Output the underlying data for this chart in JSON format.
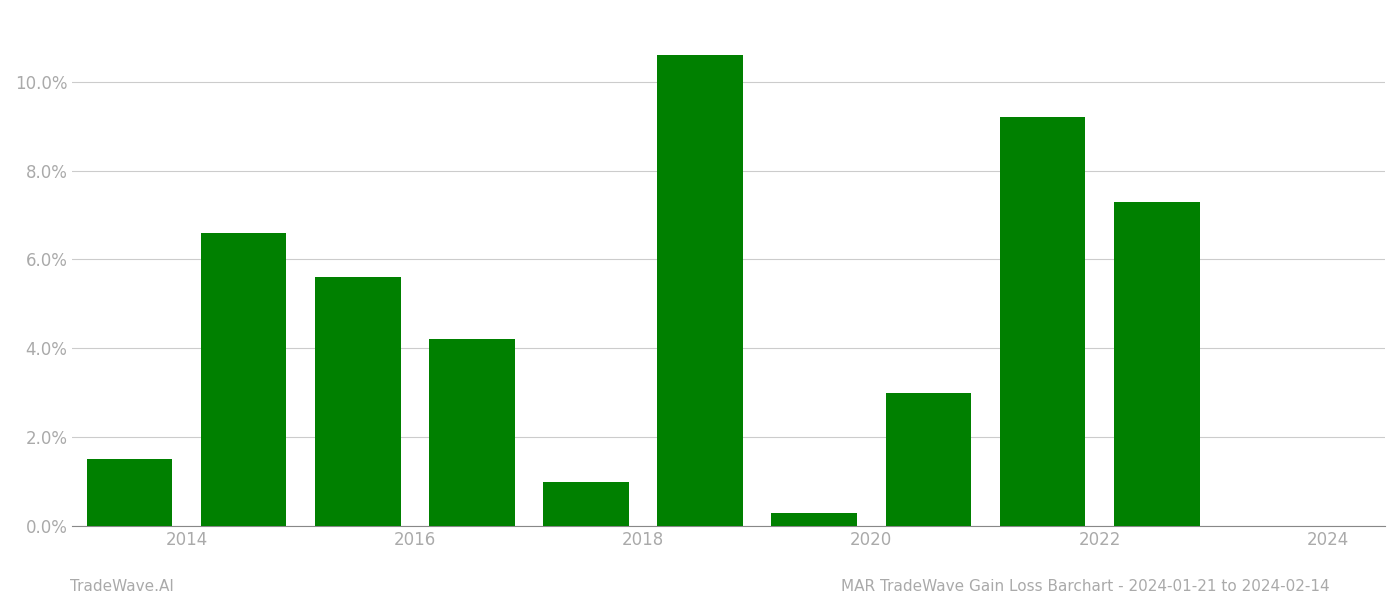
{
  "years": [
    2013.5,
    2014.5,
    2015.5,
    2016.5,
    2017.5,
    2018.5,
    2019.5,
    2020.5,
    2021.5,
    2022.5
  ],
  "values": [
    0.015,
    0.066,
    0.056,
    0.042,
    0.01,
    0.106,
    0.003,
    0.03,
    0.092,
    0.073
  ],
  "bar_color": "#008000",
  "background_color": "#ffffff",
  "grid_color": "#cccccc",
  "axis_color": "#888888",
  "tick_color": "#aaaaaa",
  "ylim": [
    0,
    0.115
  ],
  "yticks": [
    0.0,
    0.02,
    0.04,
    0.06,
    0.08,
    0.1
  ],
  "xticks": [
    2014,
    2016,
    2018,
    2020,
    2022,
    2024
  ],
  "xlim": [
    2013.0,
    2024.5
  ],
  "footer_left": "TradeWave.AI",
  "footer_right": "MAR TradeWave Gain Loss Barchart - 2024-01-21 to 2024-02-14",
  "footer_color": "#aaaaaa",
  "bar_width": 0.75
}
